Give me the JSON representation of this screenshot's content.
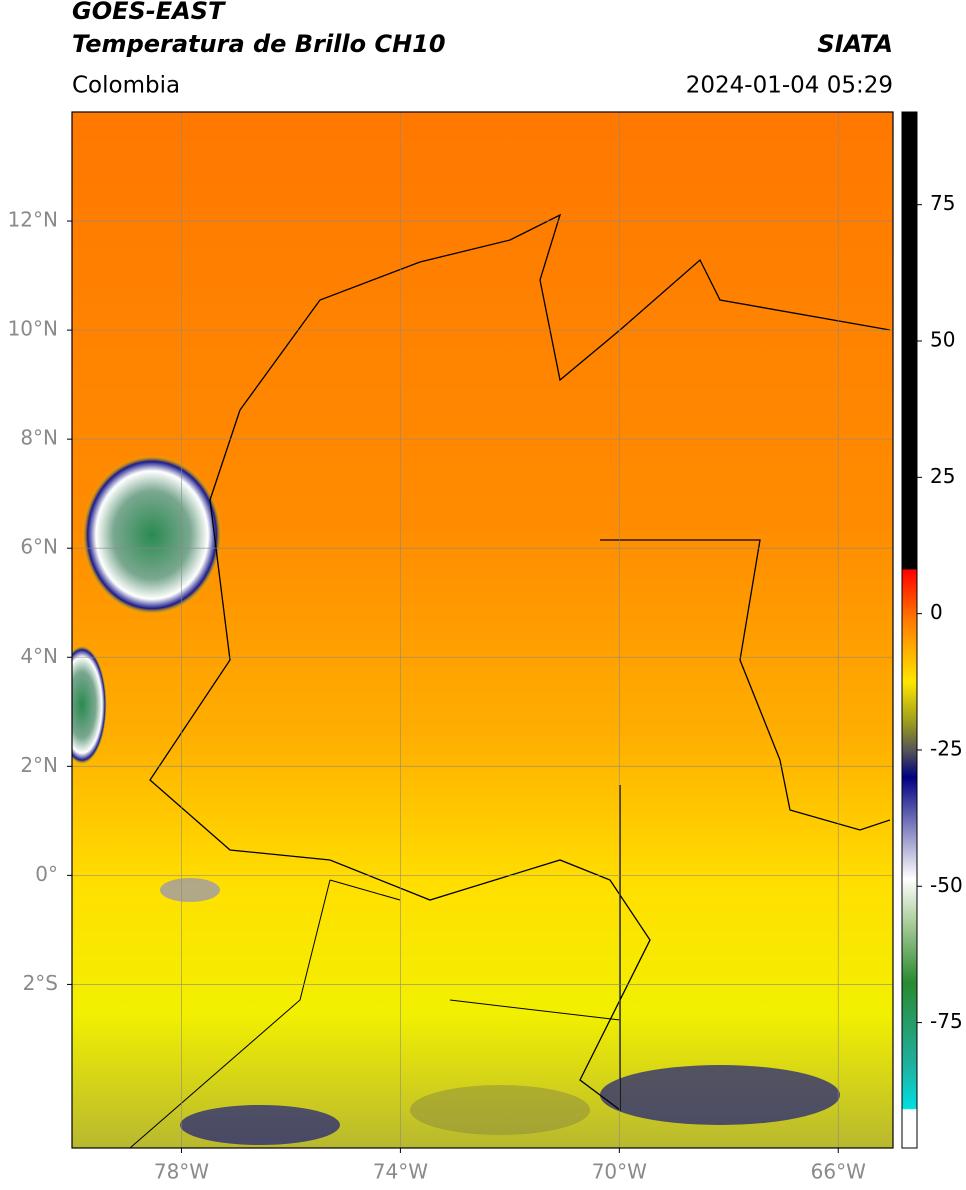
{
  "header": {
    "title": "GOES-EAST",
    "subtitle": "Temperatura de Brillo CH10",
    "source": "SIATA",
    "region": "Colombia",
    "datetime": "2024-01-04 05:29"
  },
  "map": {
    "xlim": [
      -80,
      -65
    ],
    "ylim": [
      -5,
      14
    ],
    "grid": true,
    "xticks": [
      {
        "value": -78,
        "label": "78°W"
      },
      {
        "value": -74,
        "label": "74°W"
      },
      {
        "value": -70,
        "label": "70°W"
      },
      {
        "value": -66,
        "label": "66°W"
      }
    ],
    "yticks": [
      {
        "value": 12,
        "label": "12°N"
      },
      {
        "value": 10,
        "label": "10°N"
      },
      {
        "value": 8,
        "label": "8°N"
      },
      {
        "value": 6,
        "label": "6°N"
      },
      {
        "value": 4,
        "label": "4°N"
      },
      {
        "value": 2,
        "label": "2°N"
      },
      {
        "value": 0,
        "label": "0°"
      },
      {
        "value": -2,
        "label": "2°S"
      }
    ]
  },
  "colorbar": {
    "lim": [
      -98,
      92
    ],
    "ticks": [
      75,
      50,
      25,
      0,
      -25,
      -50,
      -75
    ]
  }
}
